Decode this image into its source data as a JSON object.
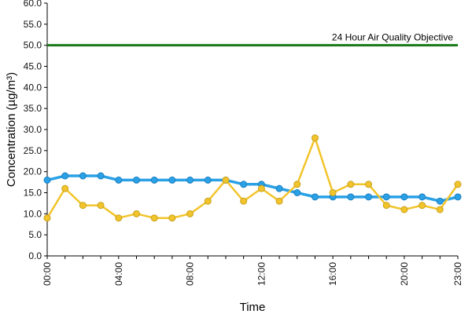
{
  "chart_data": {
    "type": "line",
    "title": "",
    "xlabel": "Time",
    "ylabel": "Concentration (µg/m³)",
    "ylim": [
      0,
      60
    ],
    "ytick_step": 5,
    "ytick_labels": [
      "0.0",
      "5.0",
      "10.0",
      "15.0",
      "20.0",
      "25.0",
      "30.0",
      "35.0",
      "40.0",
      "45.0",
      "50.0",
      "55.0",
      "60.0"
    ],
    "x": [
      "00:00",
      "01:00",
      "02:00",
      "03:00",
      "04:00",
      "05:00",
      "06:00",
      "07:00",
      "08:00",
      "09:00",
      "10:00",
      "11:00",
      "12:00",
      "13:00",
      "14:00",
      "15:00",
      "16:00",
      "17:00",
      "18:00",
      "19:00",
      "20:00",
      "21:00",
      "22:00",
      "23:00"
    ],
    "xtick_labels": [
      "00:00",
      "04:00",
      "08:00",
      "12:00",
      "16:00",
      "20:00",
      "23:00"
    ],
    "xtick_indices": [
      0,
      4,
      8,
      12,
      16,
      20,
      23
    ],
    "grid": false,
    "series": [
      {
        "color": "#2aa1e6",
        "values": [
          18,
          19,
          19,
          19,
          18,
          18,
          18,
          18,
          18,
          18,
          18,
          17,
          17,
          16,
          15,
          14,
          14,
          14,
          14,
          14,
          14,
          14,
          13,
          14
        ]
      },
      {
        "color": "#f2c42b",
        "values": [
          9,
          16,
          12,
          12,
          9,
          10,
          9,
          9,
          10,
          13,
          18,
          13,
          16,
          13,
          17,
          28,
          15,
          17,
          17,
          12,
          11,
          12,
          11,
          17
        ]
      }
    ],
    "reference_line": {
      "label": "24 Hour Air Quality Objective",
      "value": 50,
      "color": "#1a7a1a"
    }
  }
}
